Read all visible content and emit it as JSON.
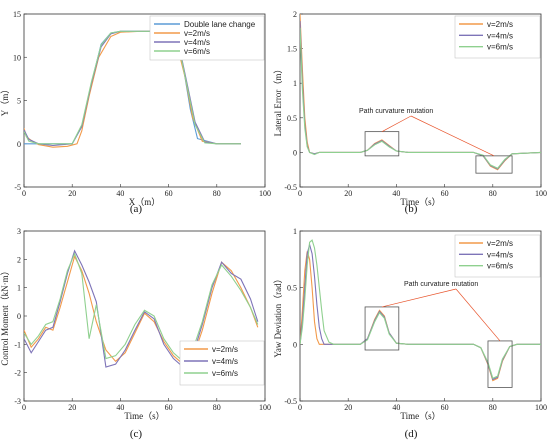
{
  "colors": {
    "orange": "#f29a4a",
    "purple": "#7e74b8",
    "green": "#8fd08f",
    "blue": "#5b9bd5",
    "red": "#e8552d",
    "box": "#555555"
  },
  "chart_data": [
    {
      "type": "line",
      "caption": "(a)",
      "xlabel": "X（m）",
      "ylabel": "Y（m）",
      "xlim": [
        0,
        100
      ],
      "ylim": [
        -5,
        15
      ],
      "xticks": [
        "0",
        "20",
        "40",
        "60",
        "80",
        "100"
      ],
      "yticks": [
        "-5",
        "0",
        "5",
        "10",
        "15"
      ],
      "legend": "top-right",
      "series": [
        {
          "name": "Double lane change",
          "color": "blue",
          "x": [
            0,
            15,
            20,
            24,
            28,
            32,
            36,
            40,
            44,
            50,
            58,
            62,
            66,
            69,
            72,
            80,
            90
          ],
          "y": [
            0,
            0,
            0,
            2,
            7,
            11.5,
            12.8,
            13,
            13,
            13,
            13,
            12.5,
            9,
            4,
            0.6,
            0,
            0
          ]
        },
        {
          "name": "v=2m/s",
          "color": "orange",
          "x": [
            0,
            1,
            3,
            6,
            12,
            18,
            22,
            24,
            27,
            31,
            36,
            40,
            48,
            58,
            63,
            67,
            70,
            74,
            80,
            90
          ],
          "y": [
            1.8,
            0.8,
            0.4,
            -0.1,
            -0.4,
            -0.3,
            0,
            1.5,
            5.5,
            10,
            12.4,
            12.9,
            13,
            13,
            12,
            7.5,
            3,
            0.3,
            0,
            0
          ]
        },
        {
          "name": "v=4m/s",
          "color": "purple",
          "x": [
            0,
            2,
            6,
            12,
            20,
            24,
            28,
            32,
            36,
            40,
            50,
            60,
            64,
            68,
            71,
            75,
            80,
            90
          ],
          "y": [
            1.6,
            0.5,
            0,
            -0.2,
            0,
            2,
            7,
            11.2,
            12.7,
            13,
            13,
            13,
            11.8,
            6.5,
            2.5,
            0.2,
            0,
            0
          ]
        },
        {
          "name": "v=6m/s",
          "color": "green",
          "x": [
            0,
            2,
            6,
            12,
            20,
            24,
            28,
            32,
            36,
            40,
            50,
            60,
            64,
            68,
            71,
            75,
            80,
            90
          ],
          "y": [
            1.4,
            0.3,
            0,
            0,
            0,
            2.2,
            7.2,
            11.4,
            12.8,
            13,
            13,
            13,
            11.6,
            6.2,
            2.2,
            0.1,
            0,
            0
          ]
        }
      ]
    },
    {
      "type": "line",
      "caption": "(b)",
      "xlabel": "Time（s）",
      "ylabel": "Lateral Error（m）",
      "xlim": [
        0,
        100
      ],
      "ylim": [
        -0.5,
        2
      ],
      "xticks": [
        "0",
        "20",
        "40",
        "60",
        "80",
        "100"
      ],
      "yticks": [
        "-0.5",
        "0",
        "0.5",
        "1",
        "1.5",
        "2"
      ],
      "legend": "top-right",
      "annotation": "Path curvature mutation",
      "series": [
        {
          "name": "v=2m/s",
          "color": "orange",
          "x": [
            0,
            1,
            2,
            3,
            4,
            6,
            8,
            10,
            25,
            28,
            31,
            34,
            37,
            40,
            45,
            72,
            76,
            79,
            82,
            85,
            88,
            100
          ],
          "y": [
            2,
            1.2,
            0.5,
            0.15,
            0,
            -0.02,
            0,
            0,
            0,
            0.03,
            0.13,
            0.18,
            0.1,
            0.02,
            0,
            0,
            -0.05,
            -0.2,
            -0.25,
            -0.12,
            -0.02,
            0
          ]
        },
        {
          "name": "v=4m/s",
          "color": "purple",
          "x": [
            0,
            1,
            2,
            3,
            4,
            6,
            8,
            10,
            25,
            28,
            31,
            34,
            37,
            40,
            45,
            72,
            76,
            79,
            82,
            85,
            88,
            100
          ],
          "y": [
            1.9,
            1.0,
            0.4,
            0.1,
            0,
            -0.02,
            0,
            0,
            0,
            0.03,
            0.12,
            0.17,
            0.09,
            0.02,
            0,
            0,
            -0.05,
            -0.19,
            -0.24,
            -0.11,
            -0.02,
            0
          ]
        },
        {
          "name": "v=6m/s",
          "color": "green",
          "x": [
            0,
            1,
            2,
            3,
            4,
            6,
            8,
            10,
            25,
            28,
            31,
            34,
            37,
            40,
            45,
            72,
            76,
            79,
            82,
            85,
            88,
            100
          ],
          "y": [
            1.8,
            0.9,
            0.35,
            0.08,
            0,
            -0.03,
            0,
            0,
            0,
            0.03,
            0.11,
            0.16,
            0.08,
            0.02,
            0,
            0,
            -0.04,
            -0.18,
            -0.23,
            -0.1,
            -0.02,
            0
          ]
        }
      ]
    },
    {
      "type": "line",
      "caption": "(c)",
      "xlabel": "Time（s）",
      "ylabel": "Control Moment（kN·m）",
      "xlim": [
        0,
        100
      ],
      "ylim": [
        -3,
        3
      ],
      "xticks": [
        "0",
        "20",
        "40",
        "60",
        "80",
        "100"
      ],
      "yticks": [
        "-3",
        "-2",
        "-1",
        "0",
        "1",
        "2",
        "3"
      ],
      "legend": "bottom-right",
      "series": [
        {
          "name": "v=2m/s",
          "color": "orange",
          "x": [
            0,
            3,
            6,
            9,
            12,
            15,
            18,
            21,
            24,
            27,
            30,
            34,
            38,
            42,
            46,
            50,
            54,
            58,
            62,
            66,
            70,
            74,
            78,
            82,
            86,
            90,
            94,
            97
          ],
          "y": [
            -0.5,
            -1.1,
            -0.8,
            -0.4,
            -0.5,
            0.3,
            1.2,
            2.1,
            1.6,
            0.8,
            -0.2,
            -1.2,
            -1.6,
            -1.3,
            -0.6,
            0.1,
            -0.2,
            -0.9,
            -1.4,
            -1.7,
            -1.5,
            -0.5,
            0.8,
            1.9,
            1.6,
            1.0,
            0.3,
            -0.4
          ]
        },
        {
          "name": "v=4m/s",
          "color": "purple",
          "x": [
            0,
            3,
            6,
            9,
            12,
            15,
            18,
            21,
            24,
            27,
            30,
            34,
            38,
            42,
            46,
            50,
            54,
            58,
            62,
            66,
            70,
            74,
            78,
            82,
            86,
            90,
            94,
            97
          ],
          "y": [
            -0.8,
            -1.3,
            -0.9,
            -0.5,
            -0.4,
            0.5,
            1.5,
            2.3,
            1.8,
            1.2,
            0.5,
            -1.8,
            -1.7,
            -1.2,
            -0.5,
            0.15,
            -0.1,
            -1.0,
            -1.5,
            -1.8,
            -1.4,
            -0.3,
            1.0,
            1.9,
            1.5,
            1.3,
            0.6,
            -0.2
          ]
        },
        {
          "name": "v=6m/s",
          "color": "green",
          "x": [
            0,
            3,
            6,
            9,
            12,
            15,
            18,
            21,
            24,
            27,
            30,
            34,
            38,
            42,
            46,
            50,
            54,
            58,
            62,
            66,
            70,
            74,
            78,
            82,
            86,
            90,
            94,
            97
          ],
          "y": [
            -0.6,
            -1.0,
            -0.7,
            -0.3,
            -0.2,
            0.6,
            1.6,
            2.2,
            1.5,
            -0.8,
            0.4,
            -1.5,
            -1.4,
            -1.0,
            -0.3,
            0.2,
            0.0,
            -0.8,
            -1.3,
            -1.6,
            -1.2,
            -0.2,
            1.1,
            1.8,
            1.4,
            0.9,
            0.3,
            -0.3
          ]
        }
      ]
    },
    {
      "type": "line",
      "caption": "(d)",
      "xlabel": "Time（s）",
      "ylabel": "Yaw Deviation（rad）",
      "xlim": [
        0,
        100
      ],
      "ylim": [
        -0.5,
        1
      ],
      "xticks": [
        "0",
        "20",
        "40",
        "60",
        "80",
        "100"
      ],
      "yticks": [
        "-0.5",
        "0",
        "0.5",
        "1"
      ],
      "legend": "top-right",
      "annotation": "Path curvature mutation",
      "series": [
        {
          "name": "v=2m/s",
          "color": "orange",
          "x": [
            0,
            1,
            2,
            3,
            4,
            5,
            6,
            7,
            8,
            10,
            25,
            28,
            31,
            33,
            35,
            37,
            40,
            45,
            72,
            75,
            78,
            80,
            82,
            84,
            87,
            90,
            100
          ],
          "y": [
            0,
            0.3,
            0.65,
            0.82,
            0.75,
            0.5,
            0.2,
            0.05,
            0,
            0,
            0,
            0.05,
            0.22,
            0.3,
            0.25,
            0.1,
            0.01,
            0,
            0,
            -0.03,
            -0.18,
            -0.32,
            -0.3,
            -0.15,
            -0.02,
            0,
            0
          ]
        },
        {
          "name": "v=4m/s",
          "color": "purple",
          "x": [
            0,
            1,
            2,
            3,
            4,
            5,
            6,
            7,
            8,
            9,
            10,
            12,
            25,
            28,
            31,
            33,
            35,
            37,
            40,
            45,
            72,
            75,
            78,
            80,
            82,
            84,
            87,
            90,
            100
          ],
          "y": [
            0,
            0.2,
            0.5,
            0.8,
            0.88,
            0.8,
            0.6,
            0.35,
            0.15,
            0.05,
            0,
            0,
            0,
            0.05,
            0.21,
            0.29,
            0.24,
            0.1,
            0.01,
            0,
            0,
            -0.03,
            -0.17,
            -0.31,
            -0.29,
            -0.14,
            -0.02,
            0,
            0
          ]
        },
        {
          "name": "v=6m/s",
          "color": "green",
          "x": [
            0,
            1,
            2,
            3,
            4,
            5,
            6,
            7,
            8,
            9,
            10,
            12,
            14,
            25,
            28,
            31,
            33,
            35,
            37,
            40,
            45,
            72,
            75,
            78,
            80,
            82,
            84,
            87,
            90,
            100
          ],
          "y": [
            0,
            0.15,
            0.4,
            0.7,
            0.9,
            0.92,
            0.85,
            0.7,
            0.5,
            0.3,
            0.12,
            0.02,
            0,
            0,
            0.04,
            0.2,
            0.28,
            0.23,
            0.09,
            0.01,
            0,
            0,
            -0.03,
            -0.16,
            -0.3,
            -0.28,
            -0.13,
            -0.02,
            0,
            0
          ]
        }
      ]
    }
  ]
}
